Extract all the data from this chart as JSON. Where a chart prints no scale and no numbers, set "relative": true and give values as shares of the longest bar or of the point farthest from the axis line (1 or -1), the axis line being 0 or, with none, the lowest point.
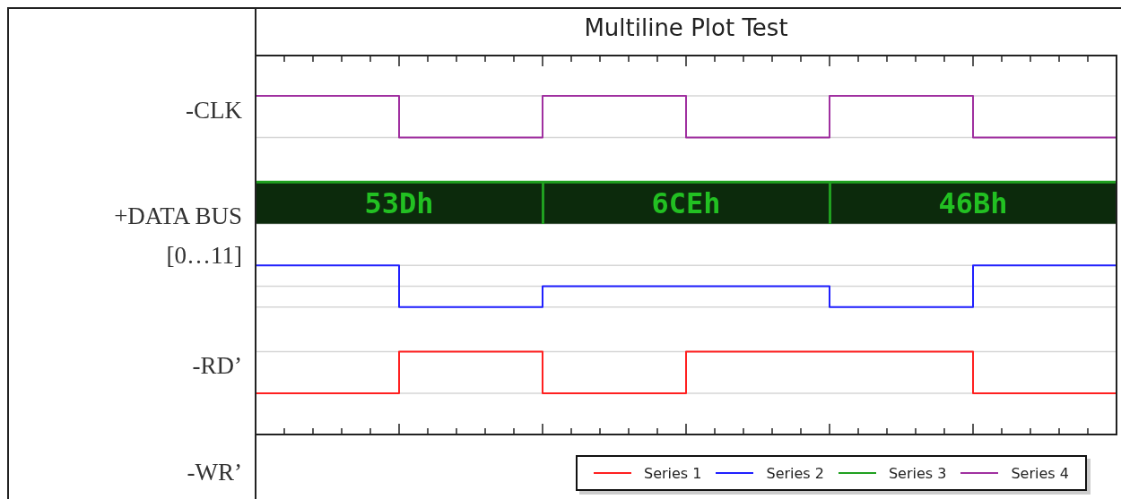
{
  "chart_data": {
    "type": "step",
    "title": "Multiline Plot Test",
    "relative": true,
    "grid": "y",
    "legend": "bottom right",
    "tick_labels": false,
    "categories": [
      null,
      null,
      null,
      null,
      null,
      null,
      null
    ],
    "series": [
      {
        "name": "Series 1",
        "color": "#ff2020",
        "values": [
          0,
          0.14,
          0,
          0.14,
          0.14,
          0,
          0
        ]
      },
      {
        "name": "Series 2",
        "color": "#2020ff",
        "values": [
          0.43,
          0.29,
          0.36,
          0.36,
          0.29,
          0.43,
          0.43
        ]
      },
      {
        "name": "Series 3",
        "color": "#20a020",
        "values": [
          0.71,
          0.71,
          0.71,
          0.71,
          0.71,
          0.71,
          0.71
        ],
        "lower": [
          0.57,
          0.57,
          0.57,
          0.57,
          0.57,
          0.57,
          0.57
        ],
        "upper": [
          0.71,
          0.71,
          0.71,
          0.71,
          0.71,
          0.71,
          0.71
        ]
      },
      {
        "name": "Series 4",
        "color": "#a030a0",
        "values": [
          1,
          0.86,
          1,
          0.86,
          1,
          0.86,
          0.86
        ]
      }
    ],
    "annotations": [
      "-CLK",
      "+DATA BUS [0…11]",
      "-RD’",
      "-WR’",
      "53Dh",
      "6CEh",
      "46Bh"
    ]
  }
}
